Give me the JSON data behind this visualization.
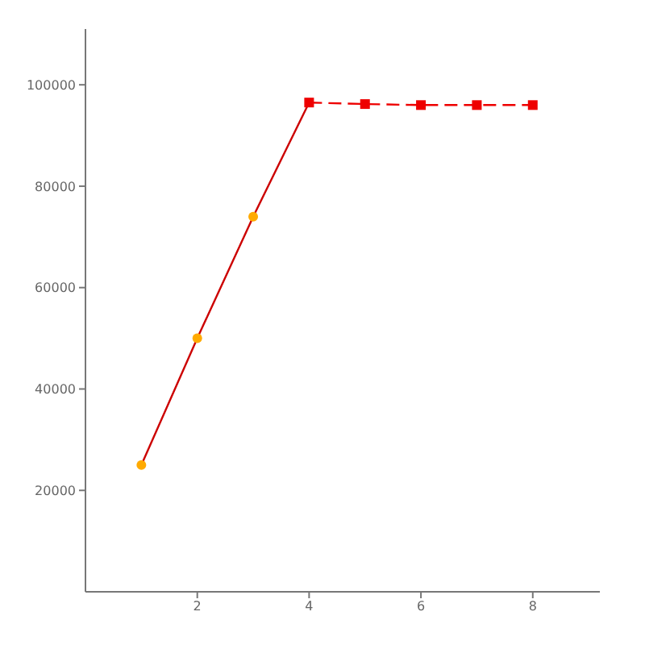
{
  "chart_data": {
    "type": "line",
    "xlim": [
      0,
      9.2
    ],
    "xticks": [
      2,
      4,
      6,
      8
    ],
    "ylim": [
      0,
      111000
    ],
    "yticks": [
      20000,
      40000,
      60000,
      80000,
      100000
    ],
    "grid": false,
    "series": [
      {
        "color": "#cc0000",
        "marker": "none",
        "line_style": "solid",
        "x": [
          1,
          2,
          3,
          4
        ],
        "values": [
          25000,
          50000,
          74000,
          96500
        ]
      },
      {
        "type": "scatter",
        "color": "#ffaa00",
        "marker": "circle",
        "x": [
          1,
          2,
          3
        ],
        "values": [
          25000,
          50000,
          74000
        ]
      },
      {
        "color": "#ee0000",
        "marker": "square",
        "line_style": "dashed",
        "x": [
          4,
          5,
          6,
          7,
          8
        ],
        "values": [
          96500,
          96200,
          96000,
          96000,
          96000
        ]
      }
    ]
  }
}
